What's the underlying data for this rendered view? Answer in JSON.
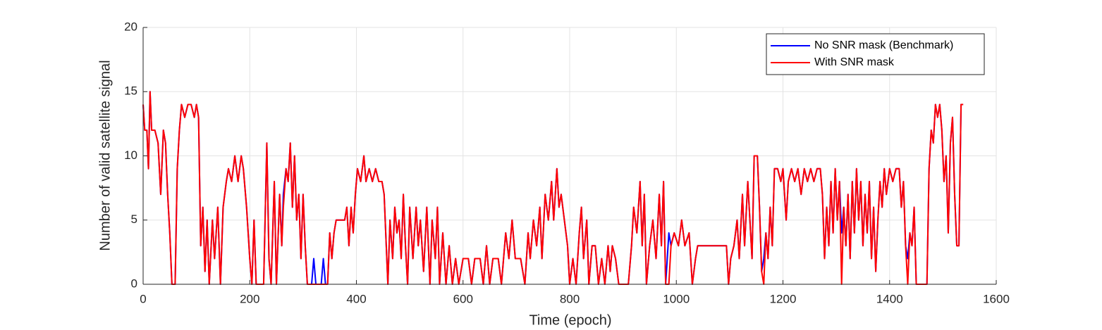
{
  "chart_data": {
    "type": "line",
    "xlabel": "Time (epoch)",
    "ylabel": "Number of valid satellite signal",
    "xlim": [
      0,
      1600
    ],
    "ylim": [
      0,
      20
    ],
    "xticks": [
      0,
      200,
      400,
      600,
      800,
      1000,
      1200,
      1400,
      1600
    ],
    "yticks": [
      0,
      5,
      10,
      15,
      20
    ],
    "grid": true,
    "legend": "upper right",
    "x": [
      0,
      3,
      7,
      10,
      13,
      16,
      22,
      28,
      33,
      38,
      42,
      46,
      50,
      54,
      60,
      64,
      68,
      72,
      78,
      84,
      90,
      96,
      100,
      104,
      108,
      112,
      116,
      120,
      124,
      130,
      134,
      140,
      145,
      150,
      156,
      160,
      166,
      172,
      178,
      184,
      188,
      194,
      200,
      204,
      208,
      212,
      226,
      232,
      236,
      240,
      246,
      250,
      256,
      260,
      263,
      268,
      272,
      276,
      280,
      284,
      288,
      292,
      296,
      300,
      304,
      308,
      316,
      320,
      324,
      334,
      338,
      342,
      346,
      350,
      354,
      358,
      362,
      370,
      378,
      382,
      386,
      390,
      394,
      398,
      402,
      408,
      414,
      418,
      424,
      430,
      436,
      442,
      448,
      452,
      456,
      459,
      463,
      468,
      472,
      476,
      480,
      484,
      488,
      492,
      496,
      500,
      506,
      512,
      516,
      520,
      526,
      532,
      538,
      542,
      548,
      552,
      556,
      562,
      568,
      574,
      580,
      586,
      592,
      600,
      610,
      616,
      622,
      632,
      638,
      644,
      650,
      656,
      666,
      672,
      680,
      686,
      692,
      698,
      708,
      716,
      722,
      726,
      732,
      738,
      744,
      748,
      754,
      760,
      766,
      770,
      776,
      780,
      784,
      790,
      796,
      800,
      806,
      812,
      818,
      822,
      826,
      832,
      836,
      842,
      848,
      854,
      860,
      866,
      872,
      876,
      880,
      886,
      892,
      910,
      916,
      920,
      926,
      932,
      936,
      940,
      944,
      950,
      956,
      962,
      968,
      972,
      976,
      980,
      986,
      990,
      996,
      1004,
      1010,
      1016,
      1024,
      1030,
      1036,
      1040,
      1046,
      1056,
      1070,
      1086,
      1094,
      1098,
      1102,
      1108,
      1114,
      1118,
      1124,
      1128,
      1134,
      1138,
      1142,
      1146,
      1152,
      1156,
      1160,
      1164,
      1168,
      1172,
      1176,
      1180,
      1184,
      1190,
      1196,
      1200,
      1206,
      1210,
      1216,
      1222,
      1228,
      1234,
      1240,
      1246,
      1252,
      1258,
      1264,
      1270,
      1274,
      1278,
      1282,
      1286,
      1290,
      1294,
      1298,
      1302,
      1306,
      1310,
      1314,
      1318,
      1322,
      1326,
      1330,
      1334,
      1338,
      1342,
      1346,
      1350,
      1354,
      1358,
      1362,
      1366,
      1370,
      1374,
      1378,
      1382,
      1386,
      1390,
      1394,
      1400,
      1406,
      1412,
      1418,
      1422,
      1426,
      1430,
      1434,
      1438,
      1442,
      1446,
      1450,
      1470,
      1474,
      1478,
      1482,
      1486,
      1490,
      1494,
      1498,
      1502,
      1506,
      1510,
      1514,
      1518,
      1522,
      1526,
      1530,
      1534,
      1538
    ],
    "series": [
      {
        "name": "No SNR mask (Benchmark)",
        "color": "#0000ff",
        "values": [
          14,
          12,
          12,
          9,
          15,
          12,
          12,
          11,
          7,
          12,
          11,
          7,
          4,
          0,
          0,
          9,
          12,
          14,
          13,
          14,
          14,
          13,
          14,
          13,
          3,
          6,
          1,
          5,
          0,
          5,
          2,
          6,
          0,
          6,
          8,
          9,
          8,
          10,
          8,
          10,
          9,
          6,
          2,
          0,
          5,
          0,
          0,
          11,
          2,
          0,
          8,
          0,
          7,
          3,
          7,
          9,
          8,
          11,
          6,
          10,
          5,
          7,
          2,
          7,
          3,
          0,
          0,
          2,
          0,
          0,
          2,
          0,
          0,
          4,
          2,
          4,
          5,
          5,
          5,
          6,
          3,
          6,
          4,
          7,
          9,
          8,
          10,
          8,
          9,
          8,
          9,
          8,
          8,
          7,
          3,
          0,
          5,
          2,
          6,
          4,
          5,
          2,
          7,
          3,
          0,
          6,
          2,
          6,
          3,
          5,
          1,
          6,
          0,
          5,
          2,
          6,
          0,
          4,
          0,
          3,
          0,
          2,
          0,
          2,
          2,
          0,
          2,
          2,
          0,
          3,
          0,
          2,
          2,
          0,
          4,
          2,
          5,
          2,
          2,
          0,
          4,
          2,
          5,
          3,
          6,
          2,
          7,
          5,
          8,
          5,
          9,
          6,
          7,
          5,
          3,
          0,
          2,
          0,
          4,
          6,
          2,
          5,
          0,
          3,
          3,
          0,
          2,
          0,
          3,
          1,
          3,
          2,
          0,
          0,
          3,
          6,
          4,
          8,
          3,
          7,
          0,
          3,
          5,
          2,
          7,
          3,
          8,
          0,
          4,
          3,
          4,
          3,
          5,
          3,
          4,
          0,
          2,
          3,
          3,
          3,
          3,
          3,
          3,
          0,
          2,
          3,
          5,
          2,
          7,
          3,
          8,
          5,
          2,
          10,
          10,
          6,
          1,
          2,
          4,
          2,
          6,
          3,
          9,
          9,
          8,
          9,
          5,
          8,
          9,
          8,
          9,
          7,
          9,
          8,
          9,
          8,
          9,
          9,
          7,
          2,
          6,
          3,
          8,
          4,
          9,
          5,
          8,
          4,
          6,
          3,
          7,
          2,
          8,
          4,
          9,
          5,
          8,
          3,
          7,
          4,
          8,
          2,
          6,
          1,
          5,
          8,
          6,
          9,
          7,
          9,
          8,
          9,
          9,
          6,
          8,
          3,
          2,
          4,
          3,
          6,
          0,
          0,
          9,
          12,
          11,
          14,
          13,
          14,
          12,
          8,
          10,
          4,
          11,
          13,
          7,
          3,
          3,
          14,
          14
        ]
      },
      {
        "name": "With SNR mask",
        "color": "#ff0000",
        "values": [
          14,
          12,
          12,
          9,
          15,
          12,
          12,
          11,
          7,
          12,
          11,
          7,
          4,
          0,
          0,
          9,
          12,
          14,
          13,
          14,
          14,
          13,
          14,
          13,
          3,
          6,
          1,
          5,
          0,
          5,
          2,
          6,
          0,
          6,
          8,
          9,
          8,
          10,
          8,
          10,
          9,
          6,
          2,
          0,
          5,
          0,
          0,
          11,
          2,
          0,
          8,
          0,
          7,
          3,
          6,
          9,
          8,
          11,
          6,
          10,
          5,
          7,
          2,
          7,
          3,
          0,
          0,
          0,
          0,
          0,
          0,
          0,
          0,
          4,
          2,
          4,
          5,
          5,
          5,
          6,
          3,
          6,
          4,
          7,
          9,
          8,
          10,
          8,
          9,
          8,
          9,
          8,
          8,
          7,
          3,
          0,
          5,
          2,
          6,
          4,
          5,
          2,
          7,
          3,
          0,
          6,
          2,
          6,
          3,
          5,
          1,
          6,
          0,
          5,
          2,
          6,
          0,
          4,
          0,
          3,
          0,
          2,
          0,
          2,
          2,
          0,
          2,
          2,
          0,
          3,
          0,
          2,
          2,
          0,
          4,
          2,
          5,
          2,
          2,
          0,
          4,
          2,
          5,
          3,
          6,
          2,
          7,
          5,
          8,
          5,
          9,
          6,
          7,
          5,
          3,
          0,
          2,
          0,
          4,
          6,
          2,
          5,
          0,
          3,
          3,
          0,
          2,
          0,
          3,
          1,
          3,
          2,
          0,
          0,
          3,
          6,
          4,
          8,
          3,
          7,
          0,
          3,
          5,
          2,
          7,
          3,
          8,
          0,
          0,
          3,
          4,
          3,
          5,
          3,
          4,
          0,
          2,
          3,
          3,
          3,
          3,
          3,
          3,
          0,
          2,
          3,
          5,
          2,
          7,
          3,
          8,
          5,
          2,
          10,
          10,
          6,
          1,
          0,
          4,
          2,
          6,
          3,
          9,
          9,
          8,
          9,
          5,
          8,
          9,
          8,
          9,
          7,
          9,
          8,
          9,
          8,
          9,
          9,
          7,
          2,
          6,
          3,
          8,
          4,
          9,
          5,
          8,
          0,
          6,
          3,
          7,
          2,
          8,
          4,
          9,
          5,
          8,
          3,
          7,
          4,
          8,
          2,
          6,
          1,
          5,
          8,
          6,
          9,
          7,
          9,
          8,
          9,
          9,
          6,
          8,
          3,
          0,
          4,
          3,
          6,
          0,
          0,
          9,
          12,
          11,
          14,
          13,
          14,
          12,
          8,
          10,
          4,
          11,
          13,
          7,
          3,
          3,
          14,
          14
        ]
      }
    ]
  }
}
